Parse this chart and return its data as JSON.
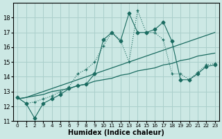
{
  "xlabel": "Humidex (Indice chaleur)",
  "bg_color": "#cce8e4",
  "grid_color": "#aacfcb",
  "line_color": "#1a6b60",
  "xlim": [
    -0.5,
    23.5
  ],
  "ylim": [
    11,
    19
  ],
  "yticks": [
    11,
    12,
    13,
    14,
    15,
    16,
    17,
    18
  ],
  "xticks": [
    0,
    1,
    2,
    3,
    4,
    5,
    6,
    7,
    8,
    9,
    10,
    11,
    12,
    13,
    14,
    15,
    16,
    17,
    18,
    19,
    20,
    21,
    22,
    23
  ],
  "trend1": [
    12.5,
    12.6,
    12.7,
    12.8,
    13.0,
    13.1,
    13.2,
    13.4,
    13.5,
    13.7,
    13.8,
    13.9,
    14.1,
    14.2,
    14.4,
    14.5,
    14.6,
    14.8,
    14.9,
    15.1,
    15.2,
    15.4,
    15.5,
    15.6
  ],
  "trend2": [
    12.5,
    12.6,
    12.8,
    13.0,
    13.2,
    13.4,
    13.6,
    13.8,
    14.0,
    14.2,
    14.4,
    14.6,
    14.8,
    15.0,
    15.2,
    15.4,
    15.6,
    15.8,
    16.0,
    16.2,
    16.4,
    16.6,
    16.8,
    17.0
  ],
  "jagged_diamond_x": [
    0,
    1,
    2,
    3,
    4,
    5,
    6,
    7,
    8,
    9,
    10,
    11,
    12,
    13,
    14,
    15,
    16,
    17,
    18,
    19,
    20,
    21,
    22,
    23
  ],
  "jagged_diamond_y": [
    12.6,
    12.2,
    11.2,
    12.2,
    12.5,
    12.8,
    13.2,
    13.4,
    13.5,
    14.2,
    16.5,
    17.0,
    16.4,
    18.3,
    17.0,
    17.0,
    17.2,
    17.7,
    16.4,
    13.8,
    13.8,
    14.2,
    14.7,
    14.8
  ],
  "dotted_plus_x": [
    0,
    1,
    2,
    3,
    4,
    5,
    6,
    7,
    8,
    9,
    10,
    11,
    12,
    13,
    14,
    15,
    16,
    17,
    18,
    19,
    20,
    21,
    22,
    23
  ],
  "dotted_plus_y": [
    12.6,
    12.2,
    12.3,
    12.5,
    12.7,
    13.0,
    13.3,
    14.2,
    14.5,
    15.0,
    16.1,
    17.0,
    16.5,
    15.0,
    18.5,
    17.0,
    17.0,
    16.5,
    14.2,
    14.2,
    13.8,
    14.3,
    14.8,
    14.9
  ]
}
